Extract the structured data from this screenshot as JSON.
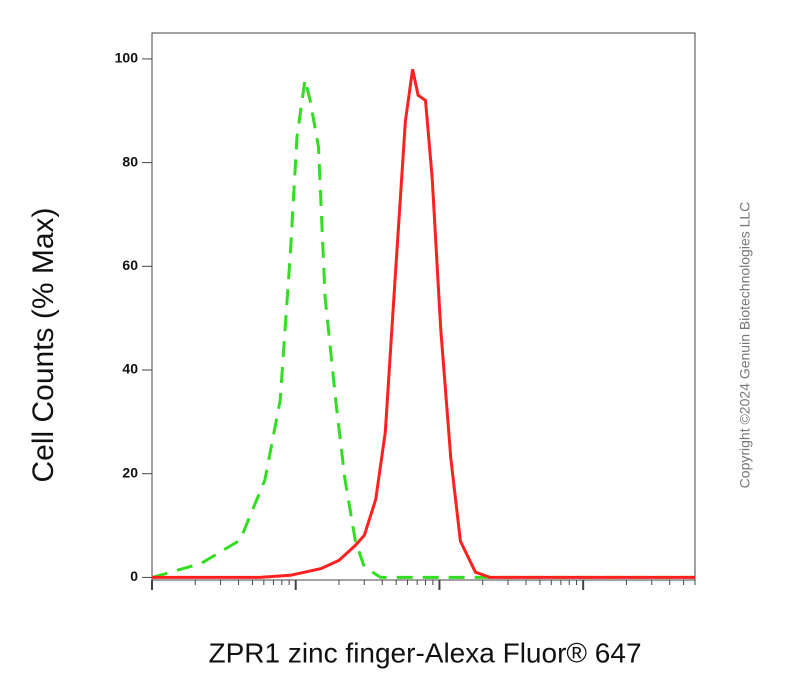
{
  "chart_data": {
    "type": "line",
    "y_label": "Cell Counts (% Max)",
    "x_label": "ZPR1 zinc finger-Alexa Fluor® 647",
    "copyright": "Copyright ©2024 Genuin Biotechnologies LLC",
    "x_log": true,
    "xlim": [
      1,
      6000
    ],
    "xticks": [
      1,
      10,
      100,
      1000
    ],
    "ylim": [
      -0.5,
      105
    ],
    "yticks": [
      0,
      20,
      40,
      60,
      80,
      100
    ],
    "series": [
      {
        "color": "#33dd22",
        "dashed": true,
        "x": [
          1,
          1.2,
          2.2,
          4.1,
          6.1,
          7.8,
          9.2,
          10.2,
          11.6,
          12.6,
          14.4,
          16,
          19,
          22,
          26,
          30,
          39,
          140,
          6000
        ],
        "values": [
          0,
          0.6,
          2.7,
          7.2,
          18.8,
          34.2,
          63,
          85,
          96,
          92,
          83,
          54,
          34,
          19,
          7,
          2,
          0,
          0,
          0
        ]
      },
      {
        "color": "#ff2020",
        "dashed": false,
        "x": [
          1,
          5.6,
          9.2,
          15,
          20,
          26,
          30,
          36,
          42,
          49,
          58,
          65,
          71,
          80,
          89,
          102,
          120,
          140,
          178,
          225,
          6000
        ],
        "values": [
          0,
          0,
          0.4,
          1.7,
          3.3,
          6.2,
          8.1,
          15,
          28,
          57,
          88,
          98,
          93,
          92,
          77,
          48,
          23,
          7,
          1,
          0,
          0
        ]
      }
    ]
  }
}
